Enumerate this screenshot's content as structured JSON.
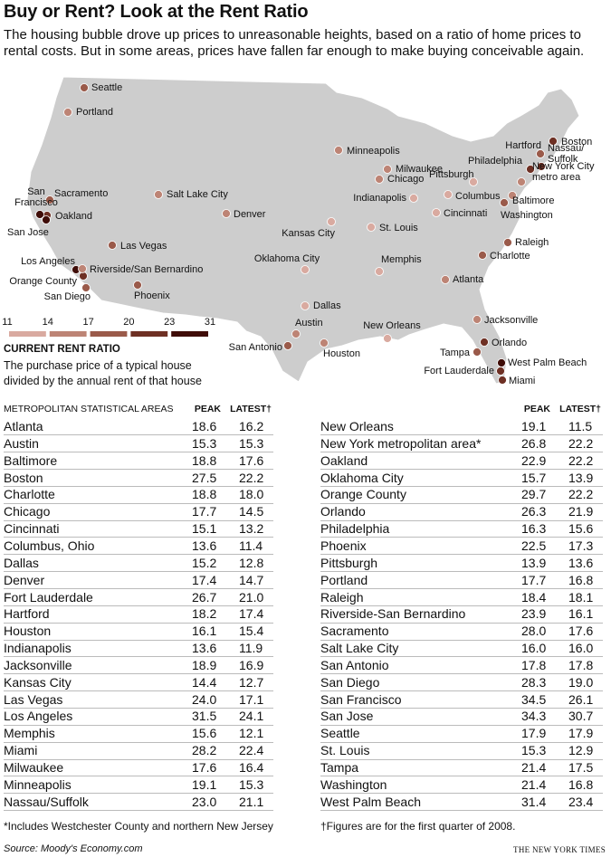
{
  "header": {
    "title": "Buy or Rent? Look at the Rent Ratio",
    "subtitle": "The housing bubble drove up prices to unreasonable heights, based on a ratio of home prices to rental costs. But in some areas, prices have fallen far enough to make buying conceivable again."
  },
  "map": {
    "legend": {
      "ticks": [
        11,
        14,
        17,
        20,
        23,
        31
      ],
      "colors": [
        "#d9aaa0",
        "#bd8475",
        "#9a5a4a",
        "#6e3024",
        "#3f0d08"
      ],
      "title": "CURRENT RENT RATIO",
      "description": "The purchase price of a typical house divided by the annual rent of that house"
    },
    "cities": [
      "Atlanta",
      "Austin",
      "Baltimore",
      "Boston",
      "Charlotte",
      "Chicago",
      "Cincinnati",
      "Columbus",
      "Dallas",
      "Denver",
      "Fort Lauderdale",
      "Hartford",
      "Houston",
      "Indianapolis",
      "Jacksonville",
      "Kansas City",
      "Las Vegas",
      "Los Angeles",
      "Memphis",
      "Miami",
      "Milwaukee",
      "Minneapolis",
      "Nassau/ Suffolk",
      "New Orleans",
      "New York City metro area",
      "Oakland",
      "Oklahoma City",
      "Orange County",
      "Orlando",
      "Philadelphia",
      "Phoenix",
      "Pittsburgh",
      "Portland",
      "Raleigh",
      "Riverside/San Bernardino",
      "Sacramento",
      "Salt Lake City",
      "San Antonio",
      "San Diego",
      "San Francisco",
      "San Jose",
      "Seattle",
      "St. Louis",
      "Tampa",
      "Washington",
      "West Palm Beach",
      "Miami"
    ]
  },
  "table": {
    "columns": [
      "METROPOLITAN STATISTICAL AREAS",
      "PEAK",
      "LATEST†"
    ],
    "rows": [
      [
        "Atlanta",
        "18.6",
        "16.2"
      ],
      [
        "Austin",
        "15.3",
        "15.3"
      ],
      [
        "Baltimore",
        "18.8",
        "17.6"
      ],
      [
        "Boston",
        "27.5",
        "22.2"
      ],
      [
        "Charlotte",
        "18.8",
        "18.0"
      ],
      [
        "Chicago",
        "17.7",
        "14.5"
      ],
      [
        "Cincinnati",
        "15.1",
        "13.2"
      ],
      [
        "Columbus, Ohio",
        "13.6",
        "11.4"
      ],
      [
        "Dallas",
        "15.2",
        "12.8"
      ],
      [
        "Denver",
        "17.4",
        "14.7"
      ],
      [
        "Fort Lauderdale",
        "26.7",
        "21.0"
      ],
      [
        "Hartford",
        "18.2",
        "17.4"
      ],
      [
        "Houston",
        "16.1",
        "15.4"
      ],
      [
        "Indianapolis",
        "13.6",
        "11.9"
      ],
      [
        "Jacksonville",
        "18.9",
        "16.9"
      ],
      [
        "Kansas City",
        "14.4",
        "12.7"
      ],
      [
        "Las Vegas",
        "24.0",
        "17.1"
      ],
      [
        "Los Angeles",
        "31.5",
        "24.1"
      ],
      [
        "Memphis",
        "15.6",
        "12.1"
      ],
      [
        "Miami",
        "28.2",
        "22.4"
      ],
      [
        "Milwaukee",
        "17.6",
        "16.4"
      ],
      [
        "Minneapolis",
        "19.1",
        "15.3"
      ],
      [
        "Nassau/Suffolk",
        "23.0",
        "21.1"
      ],
      [
        "New Orleans",
        "19.1",
        "11.5"
      ],
      [
        "New York metropolitan area*",
        "26.8",
        "22.2"
      ],
      [
        "Oakland",
        "22.9",
        "22.2"
      ],
      [
        "Oklahoma City",
        "15.7",
        "13.9"
      ],
      [
        "Orange County",
        "29.7",
        "22.2"
      ],
      [
        "Orlando",
        "26.3",
        "21.9"
      ],
      [
        "Philadelphia",
        "16.3",
        "15.6"
      ],
      [
        "Phoenix",
        "22.5",
        "17.3"
      ],
      [
        "Pittsburgh",
        "13.9",
        "13.6"
      ],
      [
        "Portland",
        "17.7",
        "16.8"
      ],
      [
        "Raleigh",
        "18.4",
        "18.1"
      ],
      [
        "Riverside-San Bernardino",
        "23.9",
        "16.1"
      ],
      [
        "Sacramento",
        "28.0",
        "17.6"
      ],
      [
        "Salt Lake City",
        "16.0",
        "16.0"
      ],
      [
        "San Antonio",
        "17.8",
        "17.8"
      ],
      [
        "San Diego",
        "28.3",
        "19.0"
      ],
      [
        "San Francisco",
        "34.5",
        "26.1"
      ],
      [
        "San Jose",
        "34.3",
        "30.7"
      ],
      [
        "Seattle",
        "17.9",
        "17.9"
      ],
      [
        "St. Louis",
        "15.3",
        "12.9"
      ],
      [
        "Tampa",
        "21.4",
        "17.5"
      ],
      [
        "Washington",
        "21.4",
        "16.8"
      ],
      [
        "West Palm Beach",
        "31.4",
        "23.4"
      ]
    ]
  },
  "footnotes": [
    "*Includes Westchester County and northern New Jersey",
    "†Figures are for the first quarter of 2008."
  ],
  "source": "Source: Moody's Economy.com",
  "credit": "THE NEW YORK TIMES"
}
